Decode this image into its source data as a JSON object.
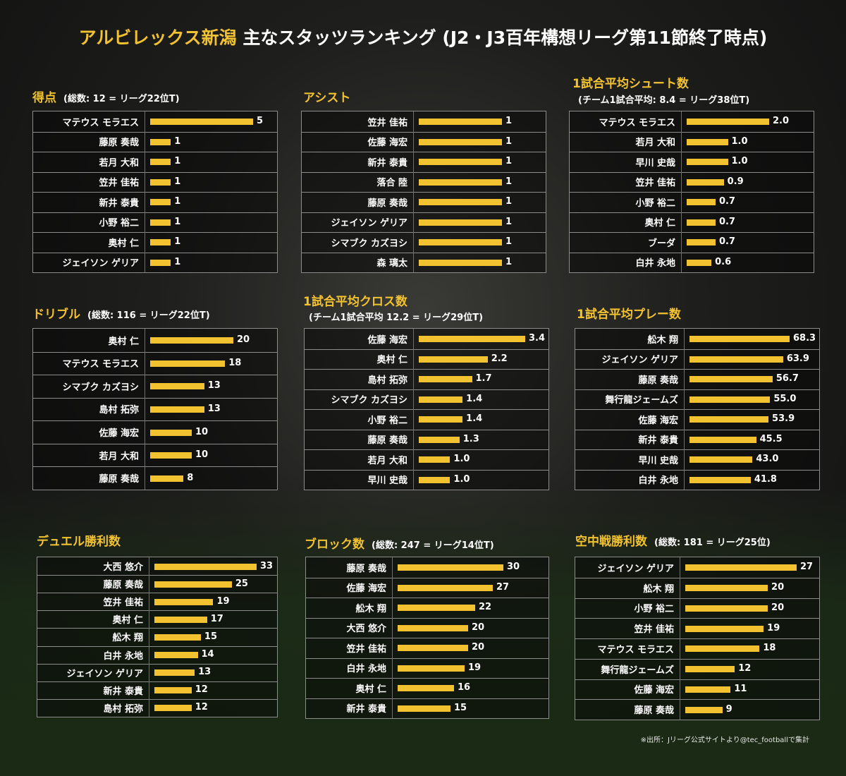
{
  "title_club": "アルビレックス新潟",
  "title_rest": "主なスタッツランキング (J2・J3百年構想リーグ第11節終了時点)",
  "footnote": "※出所：Jリーグ公式サイトより@tec_footballで集計",
  "colors": {
    "accent": "#f2c230",
    "text": "#ffffff",
    "border": "#8c8c8c"
  },
  "chart_data": [
    {
      "type": "bar",
      "title": "得点",
      "note": "(総数: 12 = リーグ22位T)",
      "categories": [
        "マテウス モラエス",
        "藤原 奏哉",
        "若月 大和",
        "笠井 佳祐",
        "新井 泰貴",
        "小野 裕二",
        "奥村 仁",
        "ジェイソン ゲリア"
      ],
      "values": [
        5,
        1,
        1,
        1,
        1,
        1,
        1,
        1
      ],
      "labels": [
        "5",
        "1",
        "1",
        "1",
        "1",
        "1",
        "1",
        "1"
      ]
    },
    {
      "type": "bar",
      "title": "アシスト",
      "note": "",
      "categories": [
        "笠井 佳祐",
        "佐藤 海宏",
        "新井 泰貴",
        "落合 陸",
        "藤原 奏哉",
        "ジェイソン ゲリア",
        "シマブク カズヨシ",
        "森 璃太"
      ],
      "values": [
        1,
        1,
        1,
        1,
        1,
        1,
        1,
        1
      ],
      "labels": [
        "1",
        "1",
        "1",
        "1",
        "1",
        "1",
        "1",
        "1"
      ]
    },
    {
      "type": "bar",
      "title": "1試合平均シュート数",
      "subtitle": "(チーム1試合平均: 8.4 = リーグ38位T)",
      "categories": [
        "マテウス モラエス",
        "若月 大和",
        "早川 史哉",
        "笠井 佳祐",
        "小野 裕二",
        "奥村 仁",
        "ブーダ",
        "白井 永地"
      ],
      "values": [
        2.0,
        1.0,
        1.0,
        0.9,
        0.7,
        0.7,
        0.7,
        0.6
      ],
      "labels": [
        "2.0",
        "1.0",
        "1.0",
        "0.9",
        "0.7",
        "0.7",
        "0.7",
        "0.6"
      ]
    },
    {
      "type": "bar",
      "title": "ドリブル",
      "note": "(総数: 116 = リーグ22位T)",
      "categories": [
        "奥村 仁",
        "マテウス モラエス",
        "シマブク カズヨシ",
        "島村 拓弥",
        "佐藤 海宏",
        "若月 大和",
        "藤原 奏哉"
      ],
      "values": [
        20,
        18,
        13,
        13,
        10,
        10,
        8
      ],
      "labels": [
        "20",
        "18",
        "13",
        "13",
        "10",
        "10",
        "8"
      ]
    },
    {
      "type": "bar",
      "title": "1試合平均クロス数",
      "subtitle": "(チーム1試合平均 12.2 = リーグ29位T)",
      "categories": [
        "佐藤 海宏",
        "奥村 仁",
        "島村 拓弥",
        "シマブク カズヨシ",
        "小野 裕二",
        "藤原 奏哉",
        "若月 大和",
        "早川 史哉"
      ],
      "values": [
        3.4,
        2.2,
        1.7,
        1.4,
        1.4,
        1.3,
        1.0,
        1.0
      ],
      "labels": [
        "3.4",
        "2.2",
        "1.7",
        "1.4",
        "1.4",
        "1.3",
        "1.0",
        "1.0"
      ]
    },
    {
      "type": "bar",
      "title": "1試合平均プレー数",
      "note": "",
      "categories": [
        "舩木 翔",
        "ジェイソン ゲリア",
        "藤原 奏哉",
        "舞行龍ジェームズ",
        "佐藤 海宏",
        "新井 泰貴",
        "早川 史哉",
        "白井 永地"
      ],
      "values": [
        68.3,
        63.9,
        56.7,
        55.0,
        53.9,
        45.5,
        43.0,
        41.8
      ],
      "labels": [
        "68.3",
        "63.9",
        "56.7",
        "55.0",
        "53.9",
        "45.5",
        "43.0",
        "41.8"
      ]
    },
    {
      "type": "bar",
      "title": "デュエル勝利数",
      "note": "",
      "categories": [
        "大西 悠介",
        "藤原 奏哉",
        "笠井 佳祐",
        "奥村 仁",
        "舩木 翔",
        "白井 永地",
        "ジェイソン ゲリア",
        "新井 泰貴",
        "島村 拓弥"
      ],
      "values": [
        33,
        25,
        19,
        17,
        15,
        14,
        13,
        12,
        12
      ],
      "labels": [
        "33",
        "25",
        "19",
        "17",
        "15",
        "14",
        "13",
        "12",
        "12"
      ]
    },
    {
      "type": "bar",
      "title": "ブロック数",
      "note": "(総数: 247 = リーグ14位T)",
      "categories": [
        "藤原 奏哉",
        "佐藤 海宏",
        "舩木 翔",
        "大西 悠介",
        "笠井 佳祐",
        "白井 永地",
        "奥村 仁",
        "新井 泰貴"
      ],
      "values": [
        30,
        27,
        22,
        20,
        20,
        19,
        16,
        15
      ],
      "labels": [
        "30",
        "27",
        "22",
        "20",
        "20",
        "19",
        "16",
        "15"
      ]
    },
    {
      "type": "bar",
      "title": "空中戦勝利数",
      "note": "(総数: 181 = リーグ25位)",
      "categories": [
        "ジェイソン ゲリア",
        "舩木 翔",
        "小野 裕二",
        "笠井 佳祐",
        "マテウス モラエス",
        "舞行龍ジェームズ",
        "佐藤 海宏",
        "藤原 奏哉"
      ],
      "values": [
        27,
        20,
        20,
        19,
        18,
        12,
        11,
        9
      ],
      "labels": [
        "27",
        "20",
        "20",
        "19",
        "18",
        "12",
        "11",
        "9"
      ]
    }
  ]
}
